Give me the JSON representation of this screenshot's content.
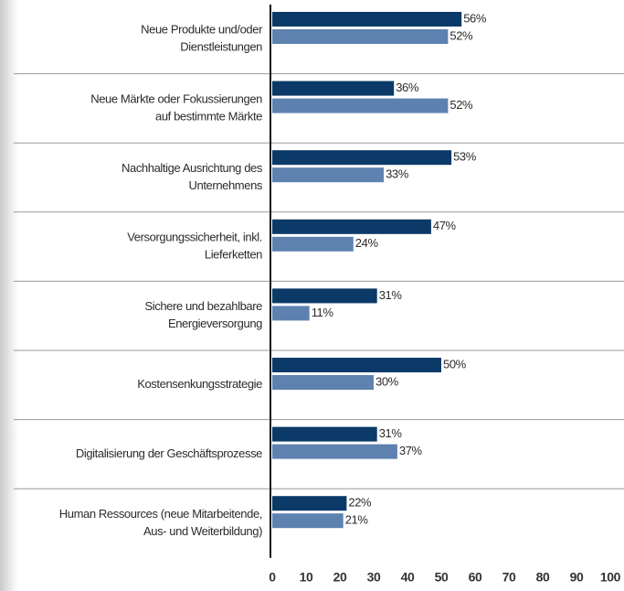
{
  "chart_data": {
    "type": "bar",
    "orientation": "horizontal",
    "categories": [
      [
        "Neue Produkte und/oder",
        "Dienstleistungen"
      ],
      [
        "Neue Märkte oder Fokussierungen",
        "auf bestimmte Märkte"
      ],
      [
        "Nachhaltige Ausrichtung des",
        "Unternehmens"
      ],
      [
        "Versorgungssicherheit, inkl.",
        "Lieferketten"
      ],
      [
        "Sichere und bezahlbare",
        "Energieversorgung"
      ],
      [
        "Kostensenkungsstrategie"
      ],
      [
        "Digitalisierung der Geschäftsprozesse"
      ],
      [
        "Human Ressources (neue Mitarbeitende,",
        "Aus- und Weiterbildung)"
      ]
    ],
    "series": [
      {
        "color": "#0b3a68",
        "values": [
          56,
          36,
          53,
          47,
          31,
          50,
          31,
          22
        ],
        "value_labels": [
          "56%",
          "36%",
          "53%",
          "47%",
          "31%",
          "50%",
          "31%",
          "22%"
        ]
      },
      {
        "color": "#5e82b0",
        "values": [
          52,
          52,
          33,
          24,
          11,
          30,
          37,
          21
        ],
        "value_labels": [
          "52%",
          "52%",
          "33%",
          "24%",
          "11%",
          "30%",
          "37%",
          "21%"
        ]
      }
    ],
    "xlim": [
      0,
      100
    ],
    "xticks": [
      0,
      10,
      20,
      30,
      40,
      50,
      60,
      70,
      80,
      90,
      100
    ]
  }
}
